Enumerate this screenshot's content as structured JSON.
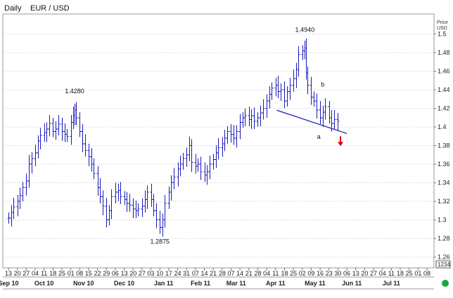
{
  "header": {
    "period": "Daily",
    "symbol": "EUR / USD"
  },
  "price_axis": {
    "unit_line1": "Price",
    "unit_line2": "USD",
    "last_value_box": "1234"
  },
  "status_indicator_color": "#1aa83a",
  "colors": {
    "bars": "#1a1ab8",
    "trendline": "#1a1ab8",
    "down_arrow": "#e00000"
  },
  "chart_data": {
    "type": "ohlc",
    "title": "",
    "xlabel": "",
    "ylabel": "",
    "ylim": [
      1.25,
      1.52
    ],
    "y_ticks": [
      1.26,
      1.28,
      1.3,
      1.32,
      1.34,
      1.36,
      1.38,
      1.4,
      1.42,
      1.44,
      1.46,
      1.48,
      1.5
    ],
    "y_tick_labels": [
      "1.26",
      "1.28",
      "1.3",
      "1.32",
      "1.34",
      "1.36",
      "1.38",
      "1.4",
      "1.42",
      "1.44",
      "1.46",
      "1.48",
      "1.5"
    ],
    "x_axis_range": [
      "2010-09-13",
      "2011-08-08"
    ],
    "x_ticks": [
      {
        "date": "2010-09-13",
        "label": "13"
      },
      {
        "date": "2010-09-20",
        "label": "20"
      },
      {
        "date": "2010-09-27",
        "label": "27"
      },
      {
        "date": "2010-10-04",
        "label": "04"
      },
      {
        "date": "2010-10-11",
        "label": "11"
      },
      {
        "date": "2010-10-18",
        "label": "18"
      },
      {
        "date": "2010-10-25",
        "label": "25"
      },
      {
        "date": "2010-11-01",
        "label": "01"
      },
      {
        "date": "2010-11-08",
        "label": "08"
      },
      {
        "date": "2010-11-15",
        "label": "15"
      },
      {
        "date": "2010-11-22",
        "label": "22"
      },
      {
        "date": "2010-11-29",
        "label": "29"
      },
      {
        "date": "2010-12-06",
        "label": "06"
      },
      {
        "date": "2010-12-13",
        "label": "13"
      },
      {
        "date": "2010-12-20",
        "label": "20"
      },
      {
        "date": "2010-12-27",
        "label": "27"
      },
      {
        "date": "2011-01-03",
        "label": "03"
      },
      {
        "date": "2011-01-10",
        "label": "10"
      },
      {
        "date": "2011-01-17",
        "label": "17"
      },
      {
        "date": "2011-01-24",
        "label": "24"
      },
      {
        "date": "2011-01-31",
        "label": "31"
      },
      {
        "date": "2011-02-07",
        "label": "07"
      },
      {
        "date": "2011-02-14",
        "label": "14"
      },
      {
        "date": "2011-02-21",
        "label": "21"
      },
      {
        "date": "2011-02-28",
        "label": "28"
      },
      {
        "date": "2011-03-07",
        "label": "07"
      },
      {
        "date": "2011-03-14",
        "label": "14"
      },
      {
        "date": "2011-03-21",
        "label": "21"
      },
      {
        "date": "2011-03-28",
        "label": "28"
      },
      {
        "date": "2011-04-04",
        "label": "04"
      },
      {
        "date": "2011-04-11",
        "label": "11"
      },
      {
        "date": "2011-04-18",
        "label": "18"
      },
      {
        "date": "2011-04-25",
        "label": "25"
      },
      {
        "date": "2011-05-02",
        "label": "02"
      },
      {
        "date": "2011-05-09",
        "label": "09"
      },
      {
        "date": "2011-05-16",
        "label": "16"
      },
      {
        "date": "2011-05-23",
        "label": "23"
      },
      {
        "date": "2011-05-30",
        "label": "30"
      },
      {
        "date": "2011-06-06",
        "label": "06"
      },
      {
        "date": "2011-06-13",
        "label": "13"
      },
      {
        "date": "2011-06-20",
        "label": "20"
      },
      {
        "date": "2011-06-27",
        "label": "27"
      },
      {
        "date": "2011-07-04",
        "label": "04"
      },
      {
        "date": "2011-07-11",
        "label": "11"
      },
      {
        "date": "2011-07-18",
        "label": "18"
      },
      {
        "date": "2011-07-25",
        "label": "25"
      },
      {
        "date": "2011-08-01",
        "label": "01"
      },
      {
        "date": "2011-08-08",
        "label": "08"
      }
    ],
    "month_labels": [
      {
        "date": "2010-09-13",
        "label": "Sep 10"
      },
      {
        "date": "2010-10-11",
        "label": "Oct 10"
      },
      {
        "date": "2010-11-11",
        "label": "Nov 10"
      },
      {
        "date": "2010-12-13",
        "label": "Dec 10"
      },
      {
        "date": "2011-01-13",
        "label": "Jan 11"
      },
      {
        "date": "2011-02-11",
        "label": "Feb 11"
      },
      {
        "date": "2011-03-11",
        "label": "Mar 11"
      },
      {
        "date": "2011-04-11",
        "label": "Apr 11"
      },
      {
        "date": "2011-05-12",
        "label": "May 11"
      },
      {
        "date": "2011-06-10",
        "label": "Jun 11"
      },
      {
        "date": "2011-07-11",
        "label": "Jul 11"
      }
    ],
    "key_prices": [
      {
        "date": "2010-11-04",
        "close": 1.428
      },
      {
        "date": "2011-01-10",
        "close": 1.2875
      },
      {
        "date": "2011-05-04",
        "close": 1.494
      }
    ],
    "series_close": [
      {
        "date": "2010-09-13",
        "close": 1.302
      },
      {
        "date": "2010-09-15",
        "close": 1.308
      },
      {
        "date": "2010-09-17",
        "close": 1.314
      },
      {
        "date": "2010-09-20",
        "close": 1.32
      },
      {
        "date": "2010-09-22",
        "close": 1.326
      },
      {
        "date": "2010-09-24",
        "close": 1.335
      },
      {
        "date": "2010-09-27",
        "close": 1.342
      },
      {
        "date": "2010-09-29",
        "close": 1.36
      },
      {
        "date": "2010-10-01",
        "close": 1.366
      },
      {
        "date": "2010-10-04",
        "close": 1.372
      },
      {
        "date": "2010-10-06",
        "close": 1.385
      },
      {
        "date": "2010-10-08",
        "close": 1.391
      },
      {
        "date": "2010-10-11",
        "close": 1.394
      },
      {
        "date": "2010-10-13",
        "close": 1.398
      },
      {
        "date": "2010-10-15",
        "close": 1.404
      },
      {
        "date": "2010-10-18",
        "close": 1.395
      },
      {
        "date": "2010-10-20",
        "close": 1.398
      },
      {
        "date": "2010-10-22",
        "close": 1.403
      },
      {
        "date": "2010-10-25",
        "close": 1.395
      },
      {
        "date": "2010-10-27",
        "close": 1.392
      },
      {
        "date": "2010-10-29",
        "close": 1.39
      },
      {
        "date": "2010-11-01",
        "close": 1.405
      },
      {
        "date": "2010-11-03",
        "close": 1.412
      },
      {
        "date": "2010-11-04",
        "close": 1.418
      },
      {
        "date": "2010-11-05",
        "close": 1.41
      },
      {
        "date": "2010-11-08",
        "close": 1.395
      },
      {
        "date": "2010-11-10",
        "close": 1.382
      },
      {
        "date": "2010-11-12",
        "close": 1.375
      },
      {
        "date": "2010-11-15",
        "close": 1.368
      },
      {
        "date": "2010-11-17",
        "close": 1.36
      },
      {
        "date": "2010-11-19",
        "close": 1.35
      },
      {
        "date": "2010-11-22",
        "close": 1.335
      },
      {
        "date": "2010-11-24",
        "close": 1.325
      },
      {
        "date": "2010-11-26",
        "close": 1.315
      },
      {
        "date": "2010-11-29",
        "close": 1.3
      },
      {
        "date": "2010-12-01",
        "close": 1.31
      },
      {
        "date": "2010-12-03",
        "close": 1.325
      },
      {
        "date": "2010-12-06",
        "close": 1.33
      },
      {
        "date": "2010-12-08",
        "close": 1.332
      },
      {
        "date": "2010-12-10",
        "close": 1.325
      },
      {
        "date": "2010-12-13",
        "close": 1.322
      },
      {
        "date": "2010-12-15",
        "close": 1.318
      },
      {
        "date": "2010-12-17",
        "close": 1.316
      },
      {
        "date": "2010-12-20",
        "close": 1.312
      },
      {
        "date": "2010-12-22",
        "close": 1.31
      },
      {
        "date": "2010-12-24",
        "close": 1.312
      },
      {
        "date": "2010-12-27",
        "close": 1.315
      },
      {
        "date": "2010-12-29",
        "close": 1.322
      },
      {
        "date": "2010-12-31",
        "close": 1.33
      },
      {
        "date": "2011-01-03",
        "close": 1.322
      },
      {
        "date": "2011-01-05",
        "close": 1.31
      },
      {
        "date": "2011-01-07",
        "close": 1.3
      },
      {
        "date": "2011-01-10",
        "close": 1.292
      },
      {
        "date": "2011-01-12",
        "close": 1.3
      },
      {
        "date": "2011-01-14",
        "close": 1.318
      },
      {
        "date": "2011-01-17",
        "close": 1.33
      },
      {
        "date": "2011-01-19",
        "close": 1.34
      },
      {
        "date": "2011-01-21",
        "close": 1.346
      },
      {
        "date": "2011-01-24",
        "close": 1.355
      },
      {
        "date": "2011-01-26",
        "close": 1.36
      },
      {
        "date": "2011-01-28",
        "close": 1.366
      },
      {
        "date": "2011-01-31",
        "close": 1.37
      },
      {
        "date": "2011-02-02",
        "close": 1.38
      },
      {
        "date": "2011-02-04",
        "close": 1.362
      },
      {
        "date": "2011-02-07",
        "close": 1.358
      },
      {
        "date": "2011-02-09",
        "close": 1.36
      },
      {
        "date": "2011-02-11",
        "close": 1.352
      },
      {
        "date": "2011-02-14",
        "close": 1.348
      },
      {
        "date": "2011-02-16",
        "close": 1.352
      },
      {
        "date": "2011-02-18",
        "close": 1.36
      },
      {
        "date": "2011-02-21",
        "close": 1.365
      },
      {
        "date": "2011-02-23",
        "close": 1.372
      },
      {
        "date": "2011-02-25",
        "close": 1.378
      },
      {
        "date": "2011-02-28",
        "close": 1.382
      },
      {
        "date": "2011-03-02",
        "close": 1.388
      },
      {
        "date": "2011-03-04",
        "close": 1.395
      },
      {
        "date": "2011-03-07",
        "close": 1.392
      },
      {
        "date": "2011-03-09",
        "close": 1.388
      },
      {
        "date": "2011-03-11",
        "close": 1.395
      },
      {
        "date": "2011-03-14",
        "close": 1.405
      },
      {
        "date": "2011-03-16",
        "close": 1.41
      },
      {
        "date": "2011-03-18",
        "close": 1.412
      },
      {
        "date": "2011-03-21",
        "close": 1.408
      },
      {
        "date": "2011-03-23",
        "close": 1.412
      },
      {
        "date": "2011-03-25",
        "close": 1.406
      },
      {
        "date": "2011-03-28",
        "close": 1.41
      },
      {
        "date": "2011-03-30",
        "close": 1.415
      },
      {
        "date": "2011-04-01",
        "close": 1.42
      },
      {
        "date": "2011-04-04",
        "close": 1.428
      },
      {
        "date": "2011-04-06",
        "close": 1.435
      },
      {
        "date": "2011-04-08",
        "close": 1.442
      },
      {
        "date": "2011-04-11",
        "close": 1.445
      },
      {
        "date": "2011-04-13",
        "close": 1.438
      },
      {
        "date": "2011-04-15",
        "close": 1.44
      },
      {
        "date": "2011-04-18",
        "close": 1.428
      },
      {
        "date": "2011-04-20",
        "close": 1.438
      },
      {
        "date": "2011-04-22",
        "close": 1.445
      },
      {
        "date": "2011-04-25",
        "close": 1.452
      },
      {
        "date": "2011-04-27",
        "close": 1.462
      },
      {
        "date": "2011-04-29",
        "close": 1.478
      },
      {
        "date": "2011-05-02",
        "close": 1.482
      },
      {
        "date": "2011-05-04",
        "close": 1.485
      },
      {
        "date": "2011-05-05",
        "close": 1.458
      },
      {
        "date": "2011-05-06",
        "close": 1.445
      },
      {
        "date": "2011-05-09",
        "close": 1.432
      },
      {
        "date": "2011-05-11",
        "close": 1.428
      },
      {
        "date": "2011-05-13",
        "close": 1.418
      },
      {
        "date": "2011-05-16",
        "close": 1.41
      },
      {
        "date": "2011-05-18",
        "close": 1.416
      },
      {
        "date": "2011-05-20",
        "close": 1.422
      },
      {
        "date": "2011-05-23",
        "close": 1.41
      },
      {
        "date": "2011-05-25",
        "close": 1.404
      },
      {
        "date": "2011-05-27",
        "close": 1.408
      },
      {
        "date": "2011-05-30",
        "close": 1.406
      }
    ],
    "annotations": [
      {
        "text": "1.4280",
        "date": "2010-11-04",
        "price": 1.428,
        "position": "above"
      },
      {
        "text": "1.2875",
        "date": "2011-01-10",
        "price": 1.2875,
        "position": "below"
      },
      {
        "text": "1.4940",
        "date": "2011-05-04",
        "price": 1.494,
        "position": "above"
      },
      {
        "text": "a",
        "date": "2011-05-15",
        "price": 1.4,
        "position": "below"
      },
      {
        "text": "b",
        "date": "2011-05-18",
        "price": 1.435,
        "position": "above"
      }
    ],
    "trendline": {
      "start": {
        "date": "2011-04-12",
        "price": 1.418
      },
      "end": {
        "date": "2011-06-06",
        "price": 1.393
      }
    },
    "signal_arrow": {
      "direction": "down",
      "date": "2011-06-01",
      "price": 1.384
    }
  }
}
